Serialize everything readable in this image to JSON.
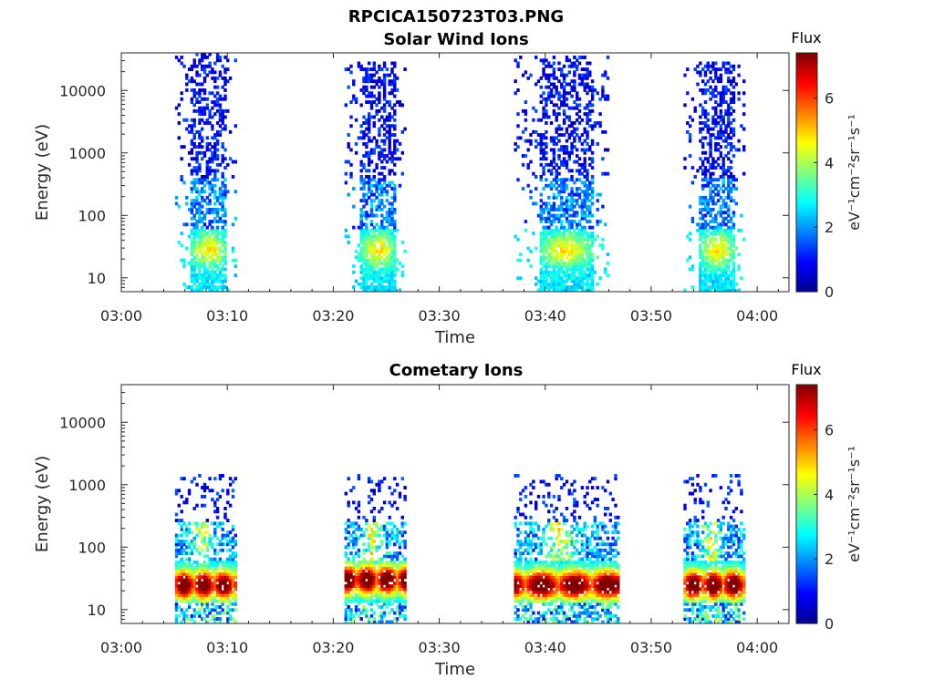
{
  "figure": {
    "title": "RPCICA150723T03.PNG"
  },
  "colors": {
    "jet": [
      "#00008f",
      "#0000ff",
      "#0080ff",
      "#00ffff",
      "#80ff80",
      "#ffff00",
      "#ff8000",
      "#ff0000",
      "#800000"
    ],
    "axis": "#262626",
    "background": "#ffffff"
  },
  "chart_data": [
    {
      "type": "heatmap",
      "title": "Solar Wind Ions",
      "xlabel": "Time",
      "ylabel": "Energy (eV)",
      "y_scale": "log",
      "ylim": [
        6,
        40000
      ],
      "xlim": [
        "03:00",
        "04:03"
      ],
      "x_ticks": [
        "03:00",
        "03:10",
        "03:20",
        "03:30",
        "03:40",
        "03:50",
        "04:00"
      ],
      "y_ticks": [
        {
          "value": 10,
          "label": "10"
        },
        {
          "value": 100,
          "label": "100"
        },
        {
          "value": 1000,
          "label": "1000"
        },
        {
          "value": 10000,
          "label": "10000"
        }
      ],
      "colorbar": {
        "title": "Flux",
        "label": "eV⁻¹cm⁻²sr⁻¹s⁻¹",
        "range": [
          0,
          7.4
        ],
        "ticks": [
          0,
          2,
          4,
          6
        ],
        "colormap": "jet"
      },
      "bursts": [
        {
          "start": "03:05",
          "end": "03:11",
          "sparse_high_eV": 40000,
          "note": "dense low-flux dots up to ~30 keV; cyan/green 10-60 eV"
        },
        {
          "start": "03:21",
          "end": "03:27",
          "sparse_high_eV": 30000,
          "note": "peak ~4.5 near 30 eV"
        },
        {
          "start": "03:37",
          "end": "03:46",
          "sparse_high_eV": 35000,
          "note": "peak ~5 near 30 eV"
        },
        {
          "start": "03:53",
          "end": "03:59",
          "sparse_high_eV": 30000,
          "note": "peak ~4 near 20 eV"
        }
      ]
    },
    {
      "type": "heatmap",
      "title": "Cometary Ions",
      "xlabel": "Time",
      "ylabel": "Energy (eV)",
      "y_scale": "log",
      "ylim": [
        6,
        40000
      ],
      "xlim": [
        "03:00",
        "04:03"
      ],
      "x_ticks": [
        "03:00",
        "03:10",
        "03:20",
        "03:30",
        "03:40",
        "03:50",
        "04:00"
      ],
      "y_ticks": [
        {
          "value": 10,
          "label": "10"
        },
        {
          "value": 100,
          "label": "100"
        },
        {
          "value": 1000,
          "label": "1000"
        },
        {
          "value": 10000,
          "label": "10000"
        }
      ],
      "colorbar": {
        "title": "Flux",
        "label": "eV⁻¹cm⁻²sr⁻¹s⁻¹",
        "range": [
          0,
          7.4
        ],
        "ticks": [
          0,
          2,
          4,
          6
        ],
        "colormap": "jet"
      },
      "bursts": [
        {
          "start": "03:05",
          "end": "03:11",
          "peak_eV": 25,
          "peak_flux": 7
        },
        {
          "start": "03:21",
          "end": "03:27",
          "peak_eV": 30,
          "peak_flux": 7.2
        },
        {
          "start": "03:37",
          "end": "03:47",
          "peak_eV": 25,
          "peak_flux": 7.2
        },
        {
          "start": "03:53",
          "end": "03:59",
          "peak_eV": 25,
          "peak_flux": 7.2
        }
      ]
    }
  ]
}
